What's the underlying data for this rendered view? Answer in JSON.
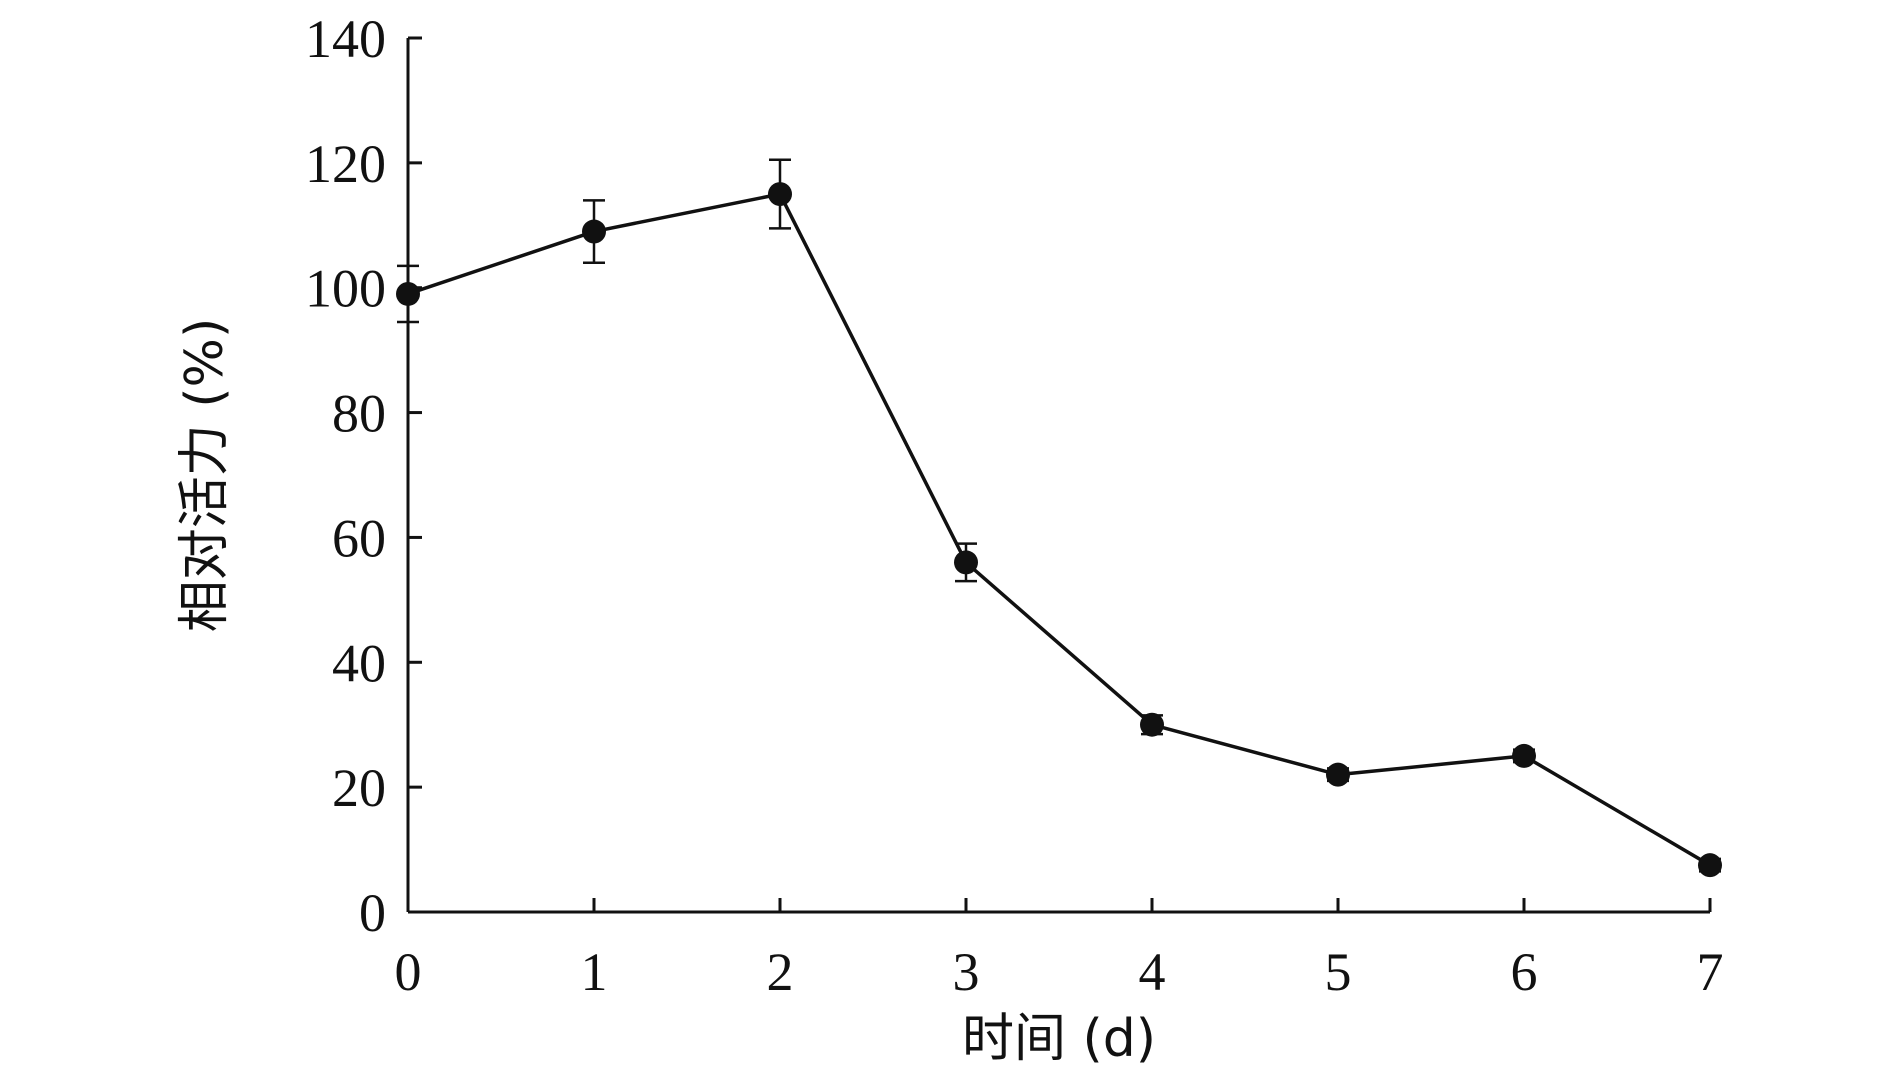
{
  "chart_data": {
    "type": "line",
    "title": "",
    "xlabel": "时间 (d)",
    "ylabel": "相对活力 (%)",
    "x": [
      0,
      1,
      2,
      3,
      4,
      5,
      6,
      7
    ],
    "xticks": [
      "0",
      "1",
      "2",
      "3",
      "4",
      "5",
      "6",
      "7"
    ],
    "yticks": [
      "0",
      "20",
      "40",
      "60",
      "80",
      "100",
      "120",
      "140"
    ],
    "xlim": [
      0,
      7
    ],
    "ylim": [
      0,
      140
    ],
    "grid": false,
    "legend": "none",
    "series": [
      {
        "values": [
          99,
          109,
          115,
          56,
          30,
          22,
          25,
          7.5
        ],
        "error": [
          4.5,
          5,
          5.5,
          3,
          1.5,
          1,
          1,
          1
        ]
      }
    ],
    "colors": {
      "line": "#111111",
      "marker": "#111111",
      "axis": "#111111"
    }
  }
}
